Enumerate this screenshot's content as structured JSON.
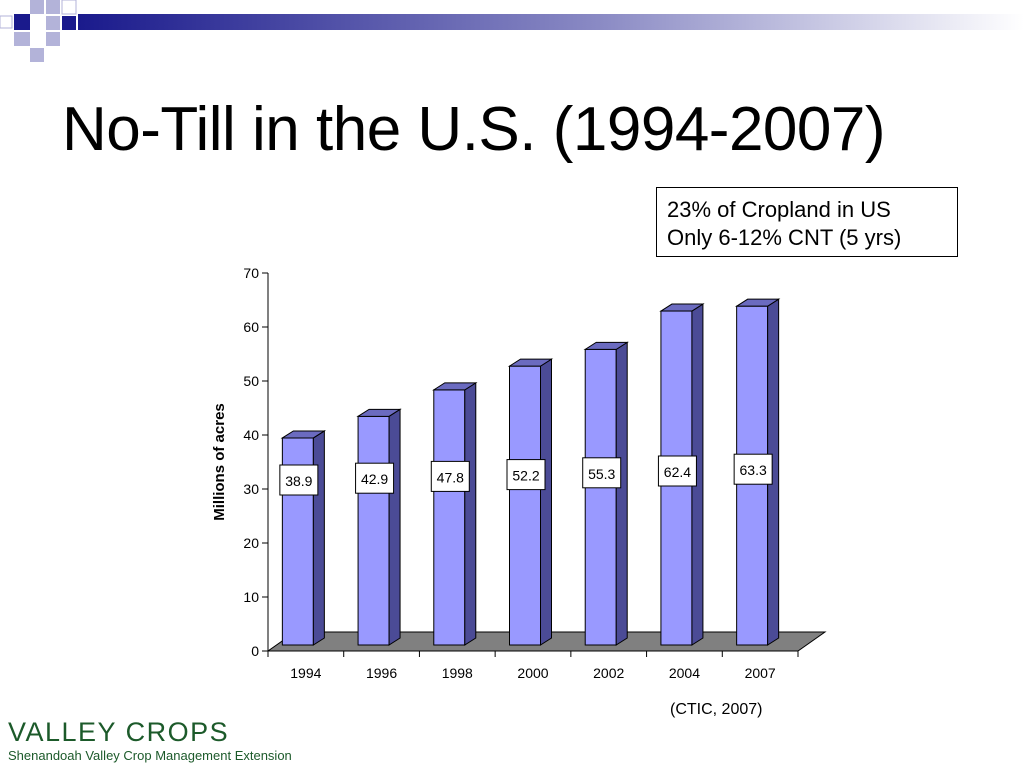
{
  "slide": {
    "title": "No-Till in the U.S. (1994-2007)",
    "note_lines": [
      "23% of Cropland in US",
      "Only 6-12% CNT  (5 yrs)"
    ],
    "source": "(CTIC, 2007)"
  },
  "logo": {
    "name": "VALLEY CROPS",
    "subtitle": "Shenandoah Valley Crop Management Extension"
  },
  "colors": {
    "deco_dark": "#1a1a8c",
    "deco_light": "#b3b3d9",
    "bar_front": "#9999ff",
    "bar_side": "#4b4b96",
    "bar_top": "#6b6bc0",
    "floor": "#808080",
    "logo": "#1c5a2a"
  },
  "chart_data": {
    "type": "bar",
    "categories": [
      "1994",
      "1996",
      "1998",
      "2000",
      "2002",
      "2004",
      "2007"
    ],
    "values": [
      38.9,
      42.9,
      47.8,
      52.2,
      55.3,
      62.4,
      63.3
    ],
    "data_labels": [
      "38.9",
      "42.9",
      "47.8",
      "52.2",
      "55.3",
      "62.4",
      "63.3"
    ],
    "title": "",
    "xlabel": "",
    "ylabel": "Millions of acres",
    "ylim": [
      0,
      70
    ],
    "yticks": [
      0,
      10,
      20,
      30,
      40,
      50,
      60,
      70
    ],
    "grid": false,
    "legend": "none",
    "style": "3d-column"
  }
}
